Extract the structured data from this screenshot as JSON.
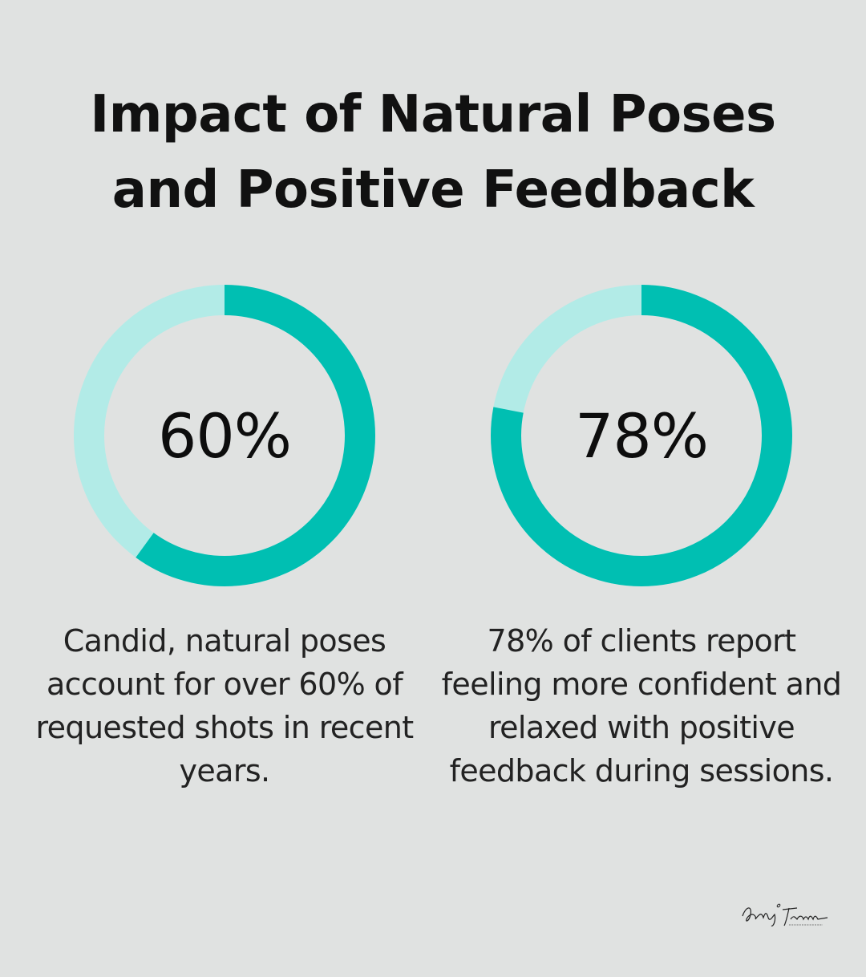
{
  "title": {
    "line1": "Impact of Natural Poses",
    "line2": "and Positive Feedback"
  },
  "colors": {
    "background": "#e0e2e1",
    "ring_filled": "#00bfb2",
    "ring_track": "#b2ebe7"
  },
  "stats": [
    {
      "value_label": "60%",
      "fraction": 0.6,
      "description": "Candid, natural poses account for over 60% of requested shots in recent years."
    },
    {
      "value_label": "78%",
      "fraction": 0.78,
      "description": "78% of clients report feeling more confident and relaxed with positive feedback during sessions."
    }
  ],
  "signature": {
    "logo_text": "Kelly Tarecki Photography"
  }
}
